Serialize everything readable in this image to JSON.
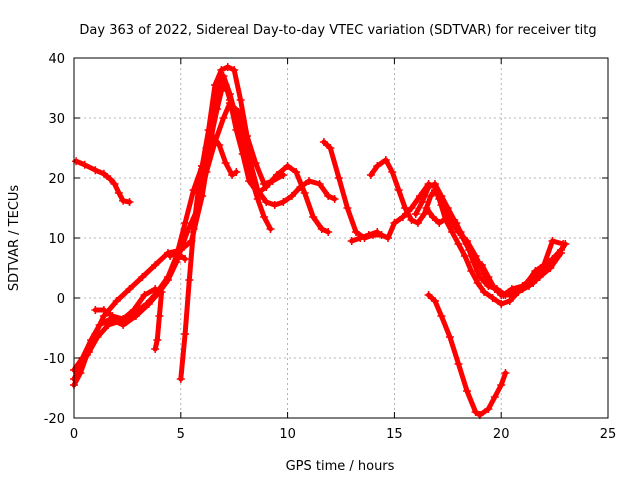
{
  "chart_data": {
    "type": "line",
    "title": "Day 363 of 2022, Sidereal Day-to-day VTEC variation (SDTVAR) for receiver titg",
    "xlabel": "GPS time / hours",
    "ylabel": "SDTVAR / TECUs",
    "xlim": [
      0,
      25
    ],
    "ylim": [
      -20,
      40
    ],
    "xticks": [
      0,
      5,
      10,
      15,
      20,
      25
    ],
    "yticks": [
      -20,
      -10,
      0,
      10,
      20,
      30,
      40
    ],
    "xtick_labels": [
      "0",
      "5",
      "10",
      "15",
      "20",
      "25"
    ],
    "ytick_labels": [
      "-20",
      "-10",
      "0",
      "10",
      "20",
      "30",
      "40"
    ],
    "grid": true,
    "legend": "none",
    "marker": "+",
    "series_color": "#ff0000",
    "series": [
      {
        "name": "trace-1",
        "points": [
          [
            0.1,
            22.8
          ],
          [
            0.5,
            22.2
          ],
          [
            1.0,
            21.3
          ],
          [
            1.4,
            20.7
          ],
          [
            1.7,
            19.8
          ],
          [
            1.9,
            19.0
          ],
          [
            2.1,
            17.5
          ],
          [
            2.3,
            16.2
          ],
          [
            2.6,
            16.0
          ]
        ]
      },
      {
        "name": "trace-2",
        "points": [
          [
            0.0,
            -14.5
          ],
          [
            0.3,
            -12.5
          ],
          [
            0.6,
            -9.5
          ],
          [
            1.0,
            -6.0
          ],
          [
            1.4,
            -3.0
          ],
          [
            2.0,
            -0.5
          ],
          [
            2.6,
            1.5
          ],
          [
            3.2,
            3.5
          ],
          [
            3.8,
            5.5
          ],
          [
            4.4,
            7.5
          ],
          [
            5.0,
            8.0
          ],
          [
            5.5,
            9.5
          ],
          [
            6.0,
            17.0
          ],
          [
            6.4,
            26.0
          ],
          [
            6.8,
            35.0
          ],
          [
            7.0,
            37.0
          ],
          [
            7.3,
            34.0
          ],
          [
            7.6,
            30.0
          ],
          [
            8.0,
            25.0
          ],
          [
            8.3,
            20.0
          ],
          [
            8.6,
            16.5
          ],
          [
            8.9,
            13.5
          ],
          [
            9.2,
            11.5
          ]
        ]
      },
      {
        "name": "trace-3",
        "points": [
          [
            0.0,
            -13.5
          ],
          [
            0.3,
            -11.5
          ],
          [
            0.7,
            -9.0
          ],
          [
            1.1,
            -6.5
          ],
          [
            1.6,
            -4.5
          ],
          [
            2.2,
            -3.8
          ],
          [
            2.8,
            -2.5
          ],
          [
            3.4,
            -1.0
          ],
          [
            3.9,
            1.0
          ],
          [
            4.4,
            3.5
          ],
          [
            4.8,
            7.0
          ],
          [
            5.2,
            12.5
          ],
          [
            5.6,
            18.0
          ],
          [
            6.0,
            22.0
          ],
          [
            6.4,
            26.5
          ],
          [
            6.7,
            31.5
          ],
          [
            6.9,
            34.5
          ],
          [
            7.1,
            35.5
          ],
          [
            7.3,
            33.0
          ],
          [
            7.6,
            28.0
          ],
          [
            7.9,
            24.0
          ],
          [
            8.2,
            19.5
          ],
          [
            8.6,
            17.5
          ],
          [
            9.0,
            18.5
          ],
          [
            9.5,
            20.5
          ],
          [
            10.0,
            22.0
          ],
          [
            10.4,
            21.0
          ],
          [
            10.8,
            17.5
          ],
          [
            11.2,
            13.5
          ],
          [
            11.6,
            11.5
          ],
          [
            11.9,
            11.0
          ]
        ]
      },
      {
        "name": "trace-4",
        "points": [
          [
            0.0,
            -12.0
          ],
          [
            0.4,
            -10.0
          ],
          [
            0.8,
            -7.0
          ],
          [
            1.2,
            -4.5
          ],
          [
            1.7,
            -3.5
          ],
          [
            2.3,
            -4.5
          ],
          [
            2.9,
            -3.0
          ],
          [
            3.5,
            -1.0
          ],
          [
            4.0,
            1.0
          ],
          [
            4.4,
            3.0
          ],
          [
            4.8,
            6.0
          ],
          [
            5.3,
            11.0
          ],
          [
            5.8,
            15.0
          ],
          [
            6.2,
            21.0
          ],
          [
            6.6,
            26.0
          ],
          [
            7.0,
            30.0
          ],
          [
            7.3,
            32.5
          ],
          [
            7.7,
            31.0
          ],
          [
            8.0,
            27.0
          ],
          [
            8.3,
            22.0
          ],
          [
            8.6,
            18.0
          ],
          [
            9.0,
            16.0
          ],
          [
            9.4,
            15.5
          ],
          [
            9.8,
            16.0
          ],
          [
            10.2,
            17.0
          ],
          [
            10.6,
            18.5
          ],
          [
            11.0,
            19.5
          ],
          [
            11.5,
            19.0
          ],
          [
            11.9,
            17.0
          ],
          [
            12.2,
            16.5
          ]
        ]
      },
      {
        "name": "trace-5",
        "points": [
          [
            1.0,
            -2.0
          ],
          [
            1.4,
            -2.0
          ],
          [
            1.8,
            -3.0
          ],
          [
            2.3,
            -3.5
          ],
          [
            2.8,
            -2.0
          ],
          [
            3.3,
            0.5
          ],
          [
            3.8,
            1.5
          ],
          [
            4.1,
            1.0
          ],
          [
            4.0,
            -3.0
          ],
          [
            3.9,
            -7.0
          ],
          [
            3.8,
            -8.5
          ]
        ]
      },
      {
        "name": "trace-6",
        "points": [
          [
            4.5,
            7.0
          ],
          [
            4.8,
            7.5
          ],
          [
            5.0,
            7.0
          ],
          [
            5.2,
            6.5
          ]
        ]
      },
      {
        "name": "trace-7",
        "points": [
          [
            5.0,
            -13.5
          ],
          [
            5.2,
            -6.0
          ],
          [
            5.4,
            3.0
          ],
          [
            5.6,
            11.5
          ],
          [
            5.8,
            17.5
          ],
          [
            6.0,
            21.5
          ],
          [
            6.2,
            25.0
          ],
          [
            6.5,
            27.0
          ],
          [
            6.8,
            25.5
          ],
          [
            7.1,
            22.5
          ],
          [
            7.4,
            20.5
          ],
          [
            7.6,
            21.0
          ]
        ]
      },
      {
        "name": "trace-8",
        "points": [
          [
            6.0,
            22.0
          ],
          [
            6.3,
            28.0
          ],
          [
            6.6,
            35.5
          ],
          [
            6.9,
            38.0
          ],
          [
            7.2,
            38.5
          ],
          [
            7.5,
            38.0
          ],
          [
            7.8,
            33.0
          ],
          [
            8.1,
            27.0
          ],
          [
            8.5,
            22.5
          ],
          [
            8.9,
            19.0
          ],
          [
            9.3,
            19.5
          ],
          [
            9.8,
            20.5
          ]
        ]
      },
      {
        "name": "trace-9",
        "points": [
          [
            11.7,
            26.0
          ],
          [
            12.0,
            25.0
          ],
          [
            12.4,
            20.0
          ],
          [
            12.8,
            15.0
          ],
          [
            13.2,
            11.0
          ],
          [
            13.6,
            10.0
          ],
          [
            14.0,
            10.5
          ],
          [
            14.4,
            10.5
          ],
          [
            14.7,
            10.0
          ],
          [
            15.0,
            12.5
          ],
          [
            15.4,
            13.5
          ],
          [
            15.8,
            15.0
          ],
          [
            16.2,
            17.0
          ],
          [
            16.6,
            19.0
          ],
          [
            16.9,
            18.5
          ],
          [
            17.2,
            15.5
          ],
          [
            17.6,
            13.0
          ],
          [
            18.0,
            11.0
          ],
          [
            18.4,
            9.5
          ],
          [
            18.8,
            7.0
          ],
          [
            19.2,
            4.0
          ],
          [
            19.6,
            2.0
          ],
          [
            20.0,
            0.5
          ],
          [
            20.4,
            0.5
          ],
          [
            20.8,
            1.5
          ],
          [
            21.2,
            2.5
          ],
          [
            21.6,
            4.5
          ],
          [
            22.0,
            5.5
          ],
          [
            22.4,
            6.5
          ],
          [
            22.8,
            8.0
          ]
        ]
      },
      {
        "name": "trace-10",
        "points": [
          [
            13.0,
            9.5
          ],
          [
            13.4,
            10.0
          ],
          [
            13.8,
            10.5
          ],
          [
            14.2,
            11.0
          ]
        ]
      },
      {
        "name": "trace-11",
        "points": [
          [
            13.9,
            20.5
          ],
          [
            14.2,
            22.0
          ],
          [
            14.6,
            23.0
          ],
          [
            14.9,
            21.0
          ],
          [
            15.2,
            18.0
          ],
          [
            15.5,
            15.0
          ],
          [
            15.8,
            13.0
          ],
          [
            16.1,
            12.5
          ],
          [
            16.4,
            14.0
          ],
          [
            16.7,
            17.0
          ],
          [
            16.9,
            18.0
          ],
          [
            17.1,
            16.5
          ],
          [
            17.4,
            13.0
          ],
          [
            17.7,
            11.0
          ],
          [
            18.0,
            9.0
          ],
          [
            18.3,
            7.0
          ],
          [
            18.6,
            4.5
          ],
          [
            18.9,
            2.5
          ],
          [
            19.2,
            1.0
          ],
          [
            19.6,
            0.0
          ],
          [
            20.0,
            -1.0
          ],
          [
            20.4,
            -0.5
          ],
          [
            20.8,
            1.0
          ],
          [
            21.3,
            2.0
          ],
          [
            21.8,
            3.5
          ],
          [
            22.3,
            5.0
          ],
          [
            22.8,
            7.5
          ]
        ]
      },
      {
        "name": "trace-12",
        "points": [
          [
            16.0,
            14.0
          ],
          [
            16.3,
            16.0
          ],
          [
            16.6,
            18.5
          ],
          [
            16.9,
            19.0
          ],
          [
            17.2,
            17.0
          ],
          [
            17.5,
            15.0
          ],
          [
            17.8,
            13.0
          ],
          [
            18.1,
            11.0
          ],
          [
            18.4,
            9.0
          ],
          [
            18.7,
            6.0
          ],
          [
            19.0,
            3.5
          ],
          [
            19.4,
            2.0
          ],
          [
            19.8,
            1.5
          ],
          [
            20.2,
            0.5
          ],
          [
            20.6,
            1.0
          ],
          [
            21.0,
            1.5
          ],
          [
            21.5,
            2.5
          ],
          [
            22.0,
            4.5
          ],
          [
            22.5,
            6.5
          ],
          [
            23.0,
            9.0
          ]
        ]
      },
      {
        "name": "trace-13",
        "points": [
          [
            16.5,
            15.0
          ],
          [
            16.8,
            13.5
          ],
          [
            17.1,
            12.5
          ],
          [
            17.5,
            13.5
          ],
          [
            17.9,
            12.5
          ],
          [
            18.2,
            10.0
          ],
          [
            18.5,
            8.0
          ],
          [
            18.8,
            6.0
          ],
          [
            19.1,
            5.5
          ],
          [
            19.4,
            3.5
          ],
          [
            19.7,
            1.5
          ],
          [
            20.1,
            0.5
          ],
          [
            20.5,
            1.5
          ],
          [
            21.0,
            2.0
          ],
          [
            21.5,
            3.5
          ],
          [
            22.0,
            5.5
          ],
          [
            22.4,
            9.5
          ],
          [
            22.9,
            9.0
          ]
        ]
      },
      {
        "name": "trace-14",
        "points": [
          [
            16.6,
            0.5
          ],
          [
            16.9,
            -0.5
          ],
          [
            17.2,
            -3.0
          ],
          [
            17.6,
            -6.5
          ],
          [
            18.0,
            -11.0
          ],
          [
            18.4,
            -15.5
          ],
          [
            18.8,
            -19.0
          ],
          [
            19.0,
            -19.5
          ],
          [
            19.4,
            -18.5
          ],
          [
            19.7,
            -16.5
          ],
          [
            20.0,
            -14.5
          ],
          [
            20.2,
            -12.5
          ]
        ]
      }
    ]
  }
}
